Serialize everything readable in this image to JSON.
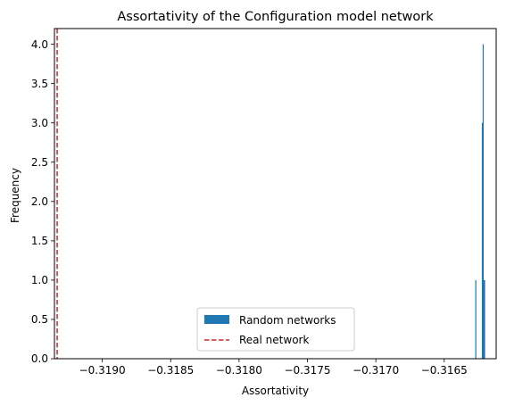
{
  "chart_data": {
    "type": "histogram",
    "title": "Assortativity of the Configuration model network",
    "xlabel": "Assortativity",
    "ylabel": "Frequency",
    "xlim": [
      -0.31935,
      -0.31612
    ],
    "ylim": [
      0,
      4.2
    ],
    "xticks": [
      {
        "value": -0.319,
        "label": "−0.3190"
      },
      {
        "value": -0.3185,
        "label": "−0.3185"
      },
      {
        "value": -0.318,
        "label": "−0.3180"
      },
      {
        "value": -0.3175,
        "label": "−0.3175"
      },
      {
        "value": -0.317,
        "label": "−0.3170"
      },
      {
        "value": -0.3165,
        "label": "−0.3165"
      }
    ],
    "yticks": [
      {
        "value": 0.0,
        "label": "0.0"
      },
      {
        "value": 0.5,
        "label": "0.5"
      },
      {
        "value": 1.0,
        "label": "1.0"
      },
      {
        "value": 1.5,
        "label": "1.5"
      },
      {
        "value": 2.0,
        "label": "2.0"
      },
      {
        "value": 2.5,
        "label": "2.5"
      },
      {
        "value": 3.0,
        "label": "3.0"
      },
      {
        "value": 3.5,
        "label": "3.5"
      },
      {
        "value": 4.0,
        "label": "4.0"
      }
    ],
    "bars": [
      {
        "x0": -0.316273,
        "x1": -0.316267,
        "count": 1
      },
      {
        "x0": -0.316225,
        "x1": -0.316219,
        "count": 3
      },
      {
        "x0": -0.316219,
        "x1": -0.316213,
        "count": 4
      },
      {
        "x0": -0.316213,
        "x1": -0.316201,
        "count": 1
      }
    ],
    "reference_line": {
      "x": -0.31933,
      "color": "#d62728",
      "style": "dashed"
    },
    "legend": {
      "placement": "lower center",
      "entries": [
        {
          "label": "Random networks",
          "color": "#1f77b4",
          "kind": "patch"
        },
        {
          "label": "Real network",
          "color": "#d62728",
          "kind": "dashed-line"
        }
      ]
    },
    "grid": false
  }
}
